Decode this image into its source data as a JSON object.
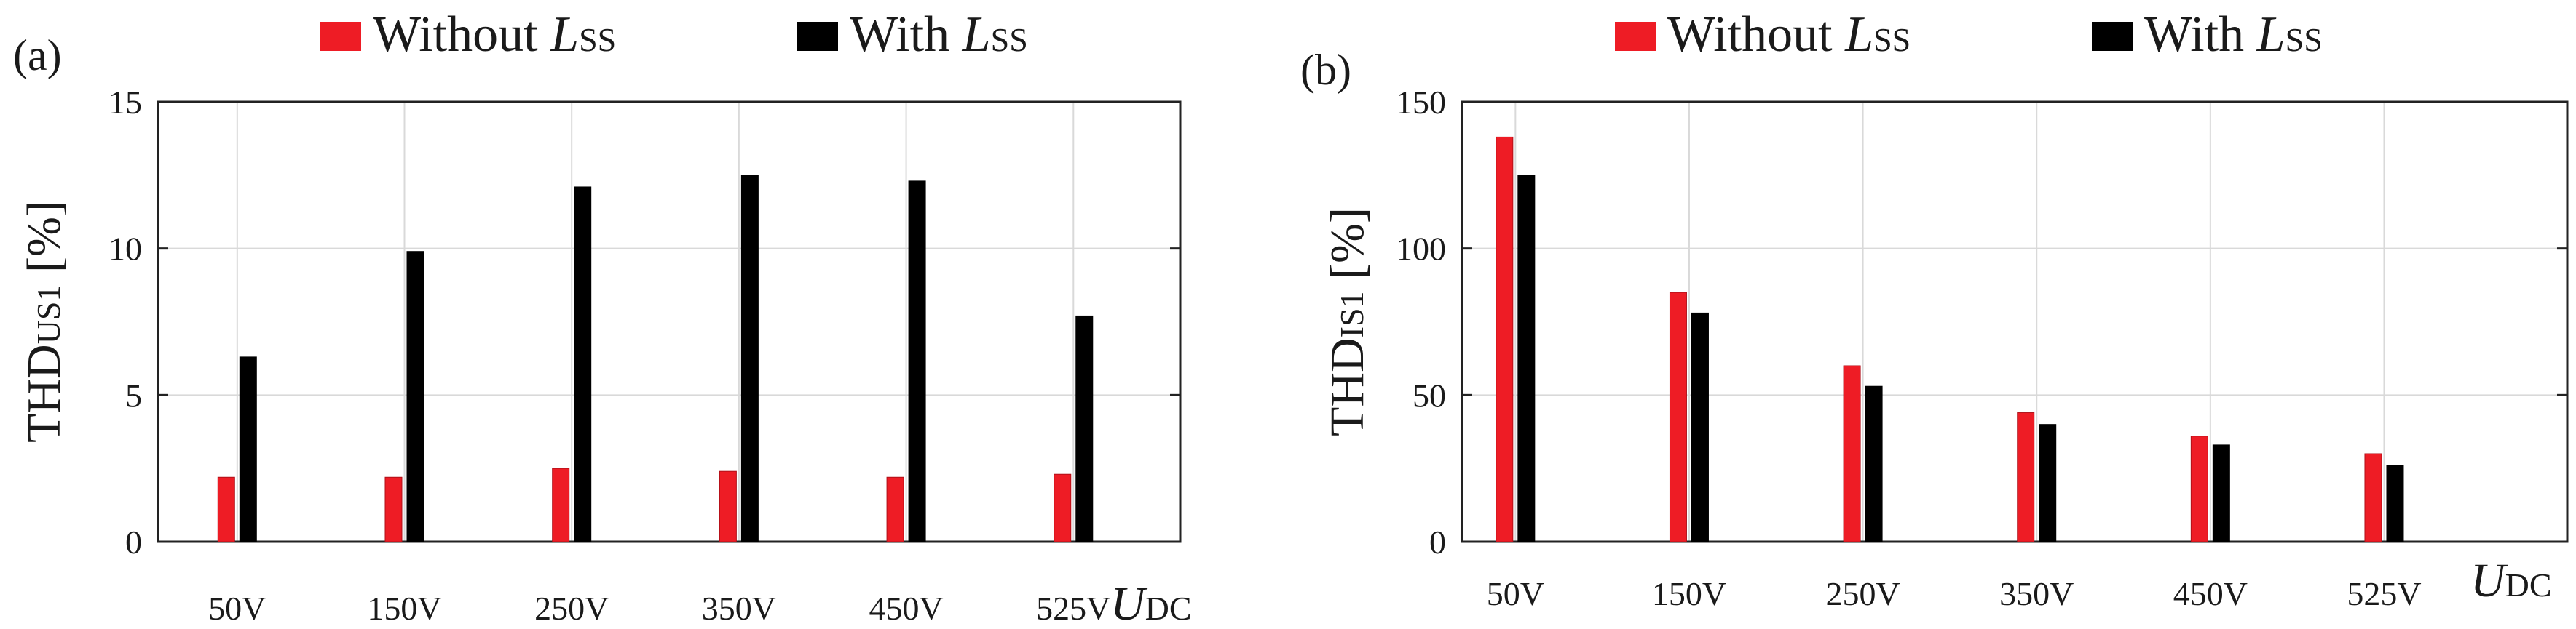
{
  "colors": {
    "without": "#ee1c25",
    "with": "#000000"
  },
  "chart_data": [
    {
      "type": "bar",
      "panel_label": "(a)",
      "categories": [
        "50V",
        "150V",
        "250V",
        "350V",
        "450V",
        "525V"
      ],
      "series": [
        {
          "name": "Without L",
          "name_sub": "SS",
          "values": [
            2.2,
            2.2,
            2.5,
            2.4,
            2.2,
            2.3
          ]
        },
        {
          "name": "With L",
          "name_sub": "SS",
          "values": [
            6.3,
            9.9,
            12.1,
            12.5,
            12.3,
            7.7
          ]
        }
      ],
      "ylabel": "THD",
      "ylabel_sub": "US1",
      "ylabel_unit": " [%]",
      "xlabel": "U",
      "xlabel_sub": "DC",
      "yticks": [
        "0",
        "5",
        "10",
        "15"
      ],
      "ylim": [
        0,
        15
      ],
      "grid": true,
      "legend": "top"
    },
    {
      "type": "bar",
      "panel_label": "(b)",
      "categories": [
        "50V",
        "150V",
        "250V",
        "350V",
        "450V",
        "525V"
      ],
      "series": [
        {
          "name": "Without L",
          "name_sub": "SS",
          "values": [
            138,
            85,
            60,
            44,
            36,
            30
          ]
        },
        {
          "name": "With L",
          "name_sub": "SS",
          "values": [
            125,
            78,
            53,
            40,
            33,
            26
          ]
        }
      ],
      "ylabel": "THD",
      "ylabel_sub": "IS1",
      "ylabel_unit": " [%]",
      "xlabel": "U",
      "xlabel_sub": "DC",
      "yticks": [
        "0",
        "50",
        "100",
        "150"
      ],
      "ylim": [
        0,
        150
      ],
      "grid": true,
      "legend": "top"
    }
  ]
}
